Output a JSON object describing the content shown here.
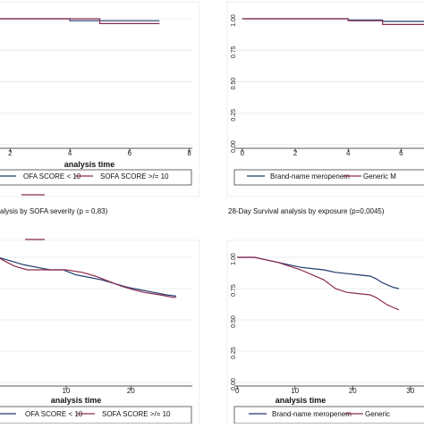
{
  "colors": {
    "series1": "#1f3a6b",
    "series2": "#8c2b52",
    "frame": "#e8ecf0"
  },
  "captions": {
    "left": "alysis by SOFA severity (p = 0,83)",
    "right": "28-Day Survival analysis by exposure (p=0,0045)"
  },
  "chart_data": [
    {
      "type": "line",
      "title": "",
      "xlabel": "analysis time",
      "ylabel": "",
      "xlim": [
        1.6,
        8.1
      ],
      "ylim": [
        0,
        1.05
      ],
      "x_ticks": [
        "2",
        "4",
        "6",
        "8"
      ],
      "y_ticks": [],
      "grid": true,
      "legend": {
        "position": "bottom",
        "entries": [
          "OFA SCORE < 10",
          "SOFA SCORE >/= 10"
        ]
      },
      "series": [
        {
          "name": "OFA SCORE < 10",
          "points": [
            [
              1.6,
              1.0
            ],
            [
              4.0,
              1.0
            ],
            [
              4.0,
              0.985
            ],
            [
              7.0,
              0.985
            ]
          ]
        },
        {
          "name": "SOFA SCORE >/= 10",
          "points": [
            [
              1.6,
              1.0
            ],
            [
              5.0,
              1.0
            ],
            [
              5.0,
              0.962
            ],
            [
              7.0,
              0.962
            ]
          ]
        }
      ]
    },
    {
      "type": "line",
      "title": "",
      "xlabel": "",
      "ylabel": "",
      "xlim": [
        -0.3,
        6.9
      ],
      "ylim": [
        0,
        1.05
      ],
      "x_ticks": [
        "0",
        "2",
        "4",
        "6"
      ],
      "y_ticks": [
        "0.00",
        "0.25",
        "0.50",
        "0.75",
        "1.00"
      ],
      "grid": true,
      "legend": {
        "position": "bottom",
        "entries": [
          "Brand-name meropenem",
          "Generic M"
        ]
      },
      "series": [
        {
          "name": "Brand-name meropenem",
          "points": [
            [
              0,
              1.0
            ],
            [
              4.0,
              1.0
            ],
            [
              4.0,
              0.99
            ],
            [
              5.3,
              0.99
            ],
            [
              5.3,
              0.98
            ],
            [
              7.0,
              0.98
            ]
          ]
        },
        {
          "name": "Generic M",
          "points": [
            [
              0,
              1.0
            ],
            [
              4.0,
              1.0
            ],
            [
              4.0,
              0.985
            ],
            [
              5.3,
              0.985
            ],
            [
              5.3,
              0.955
            ],
            [
              7.0,
              0.955
            ]
          ]
        }
      ]
    },
    {
      "type": "line",
      "title": "",
      "xlabel": "analysis time",
      "ylabel": "",
      "xlim": [
        -0.5,
        29.5
      ],
      "ylim": [
        0,
        1.05
      ],
      "x_ticks": [
        "10",
        "20"
      ],
      "y_ticks": [],
      "grid": true,
      "legend": {
        "position": "bottom",
        "entries": [
          "OFA SCORE < 10",
          "SOFA SCORE >/= 10"
        ]
      },
      "series": [
        {
          "name": "OFA SCORE < 10",
          "points": [
            [
              -0.5,
              1.0
            ],
            [
              1.5,
              0.97
            ],
            [
              3.5,
              0.94
            ],
            [
              5.5,
              0.92
            ],
            [
              7.5,
              0.9
            ],
            [
              9.5,
              0.9
            ],
            [
              11.5,
              0.86
            ],
            [
              13.5,
              0.84
            ],
            [
              15.5,
              0.82
            ],
            [
              17.5,
              0.79
            ],
            [
              19.5,
              0.76
            ],
            [
              21.5,
              0.74
            ],
            [
              23.5,
              0.72
            ],
            [
              25.5,
              0.7
            ],
            [
              27.0,
              0.69
            ]
          ]
        },
        {
          "name": "SOFA SCORE >/= 10",
          "points": [
            [
              -0.5,
              1.0
            ],
            [
              0.5,
              0.97
            ],
            [
              2.0,
              0.93
            ],
            [
              4.0,
              0.9
            ],
            [
              6.0,
              0.9
            ],
            [
              10.0,
              0.9
            ],
            [
              12.5,
              0.88
            ],
            [
              14.5,
              0.85
            ],
            [
              16.5,
              0.81
            ],
            [
              18.5,
              0.77
            ],
            [
              20.5,
              0.74
            ],
            [
              22.0,
              0.72
            ],
            [
              24.5,
              0.7
            ],
            [
              26.5,
              0.68
            ],
            [
              27.0,
              0.68
            ]
          ]
        }
      ]
    },
    {
      "type": "line",
      "title": "",
      "xlabel": "analysis time",
      "ylabel": "",
      "xlim": [
        -0.5,
        32.5
      ],
      "ylim": [
        0,
        1.05
      ],
      "x_ticks": [
        "0",
        "10",
        "20",
        "30"
      ],
      "y_ticks": [
        "0.00",
        "0.25",
        "0.50",
        "0.75",
        "1.00"
      ],
      "grid": true,
      "legend": {
        "position": "bottom",
        "entries": [
          "Brand-name meropenem",
          "Generic"
        ]
      },
      "series": [
        {
          "name": "Brand-name meropenem",
          "points": [
            [
              0,
              1.0
            ],
            [
              3,
              1.0
            ],
            [
              5,
              0.98
            ],
            [
              7,
              0.96
            ],
            [
              9,
              0.94
            ],
            [
              11,
              0.92
            ],
            [
              13,
              0.91
            ],
            [
              15,
              0.9
            ],
            [
              17,
              0.88
            ],
            [
              19,
              0.87
            ],
            [
              21,
              0.86
            ],
            [
              23,
              0.85
            ],
            [
              24,
              0.83
            ],
            [
              25,
              0.8
            ],
            [
              26,
              0.78
            ],
            [
              27,
              0.76
            ],
            [
              28,
              0.75
            ]
          ]
        },
        {
          "name": "Generic",
          "points": [
            [
              0,
              1.0
            ],
            [
              3,
              1.0
            ],
            [
              5,
              0.98
            ],
            [
              7,
              0.96
            ],
            [
              9,
              0.93
            ],
            [
              11,
              0.9
            ],
            [
              13,
              0.86
            ],
            [
              15,
              0.82
            ],
            [
              17,
              0.75
            ],
            [
              19,
              0.72
            ],
            [
              21,
              0.71
            ],
            [
              23,
              0.7
            ],
            [
              24,
              0.68
            ],
            [
              25,
              0.65
            ],
            [
              26,
              0.62
            ],
            [
              27,
              0.6
            ],
            [
              28,
              0.58
            ]
          ]
        }
      ]
    }
  ]
}
